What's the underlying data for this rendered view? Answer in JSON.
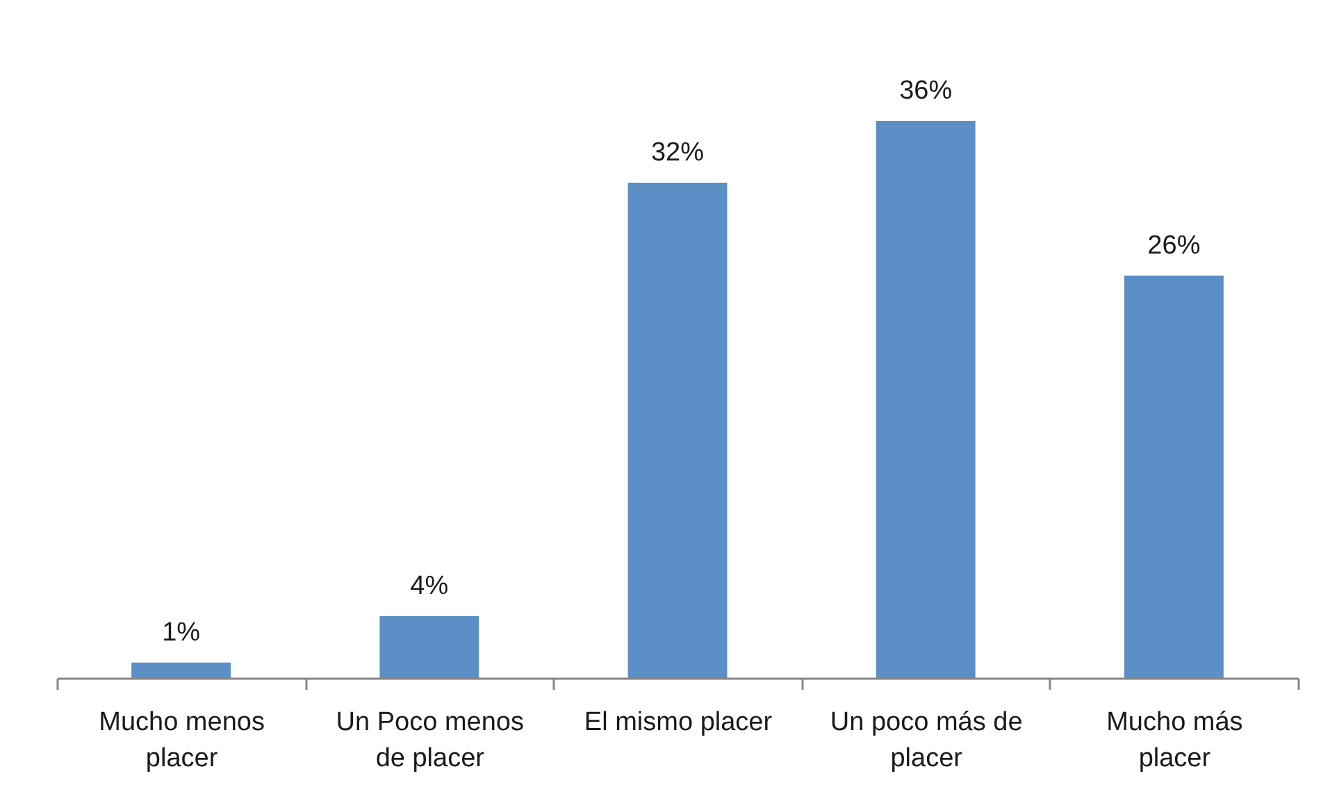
{
  "chart_data": {
    "type": "bar",
    "categories": [
      "Mucho menos placer",
      "Un Poco menos de placer",
      "El mismo placer",
      "Un poco más de placer",
      "Mucho más placer"
    ],
    "values": [
      1,
      4,
      32,
      36,
      26
    ],
    "value_labels": [
      "1%",
      "4%",
      "32%",
      "36%",
      "26%"
    ],
    "color": "#5b8fc6"
  }
}
